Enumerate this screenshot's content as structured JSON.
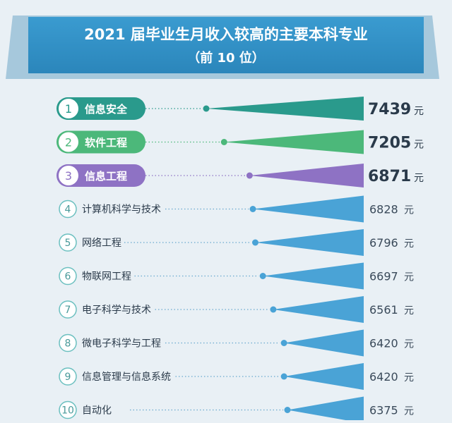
{
  "chart_data": {
    "type": "bar",
    "title": "2021 届毕业生月收入较高的主要本科专业",
    "subtitle": "（前 10 位）",
    "unit": "元",
    "ranks": [
      "1",
      "2",
      "3",
      "4",
      "5",
      "6",
      "7",
      "8",
      "9",
      "10"
    ],
    "categories": [
      "信息安全",
      "软件工程",
      "信息工程",
      "计算机科学与技术",
      "网络工程",
      "物联网工程",
      "电子科学与技术",
      "微电子科学与工程",
      "信息管理与信息系统",
      "自动化"
    ],
    "values": [
      7439,
      7205,
      6871,
      6828,
      6796,
      6697,
      6561,
      6420,
      6420,
      6375
    ],
    "value_labels": [
      "7439",
      "7205",
      "6871",
      "6828",
      "6796",
      "6697",
      "6561",
      "6420",
      "6420",
      "6375"
    ],
    "highlight_colors": [
      "#2a9a8c",
      "#4cb87a",
      "#8e72c4"
    ],
    "default_color": "#4aa3d6",
    "title_banner_color": "#2f8fc2"
  }
}
